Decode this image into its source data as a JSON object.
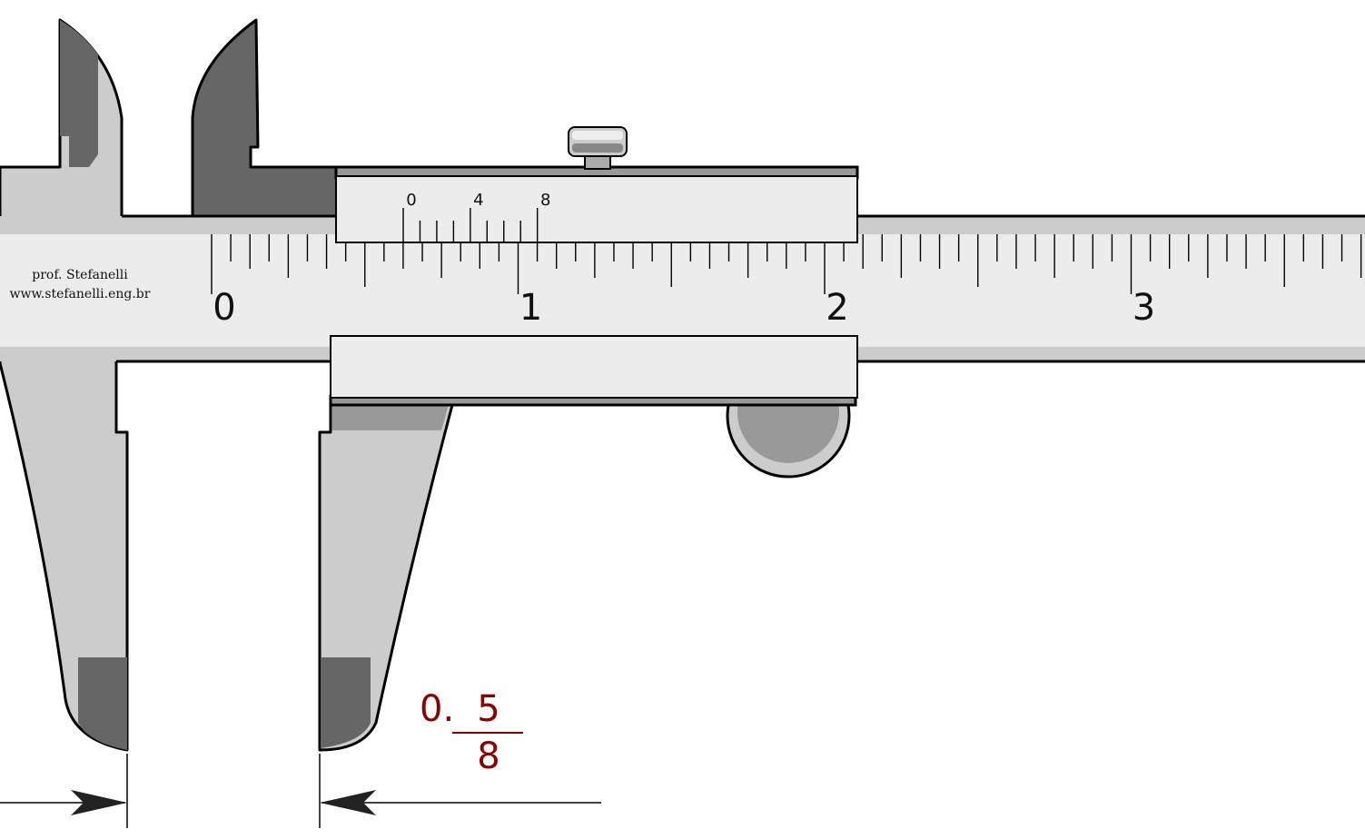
{
  "credit": {
    "line1": "prof. Stefanelli",
    "line2": "www.stefanelli.eng.br"
  },
  "main_scale": {
    "labels": [
      "0",
      "1",
      "2",
      "3"
    ],
    "subdivisions_per_unit": 16
  },
  "vernier_scale": {
    "labels": [
      "0",
      "4",
      "8"
    ],
    "divisions": 8
  },
  "reading": {
    "whole": "0.",
    "numerator": "5",
    "denominator": "8"
  },
  "colors": {
    "reading": "#8b0000",
    "body_light": "#cccccc",
    "body_dark": "#666666",
    "scale_face": "#ececec",
    "outline": "#000000"
  }
}
